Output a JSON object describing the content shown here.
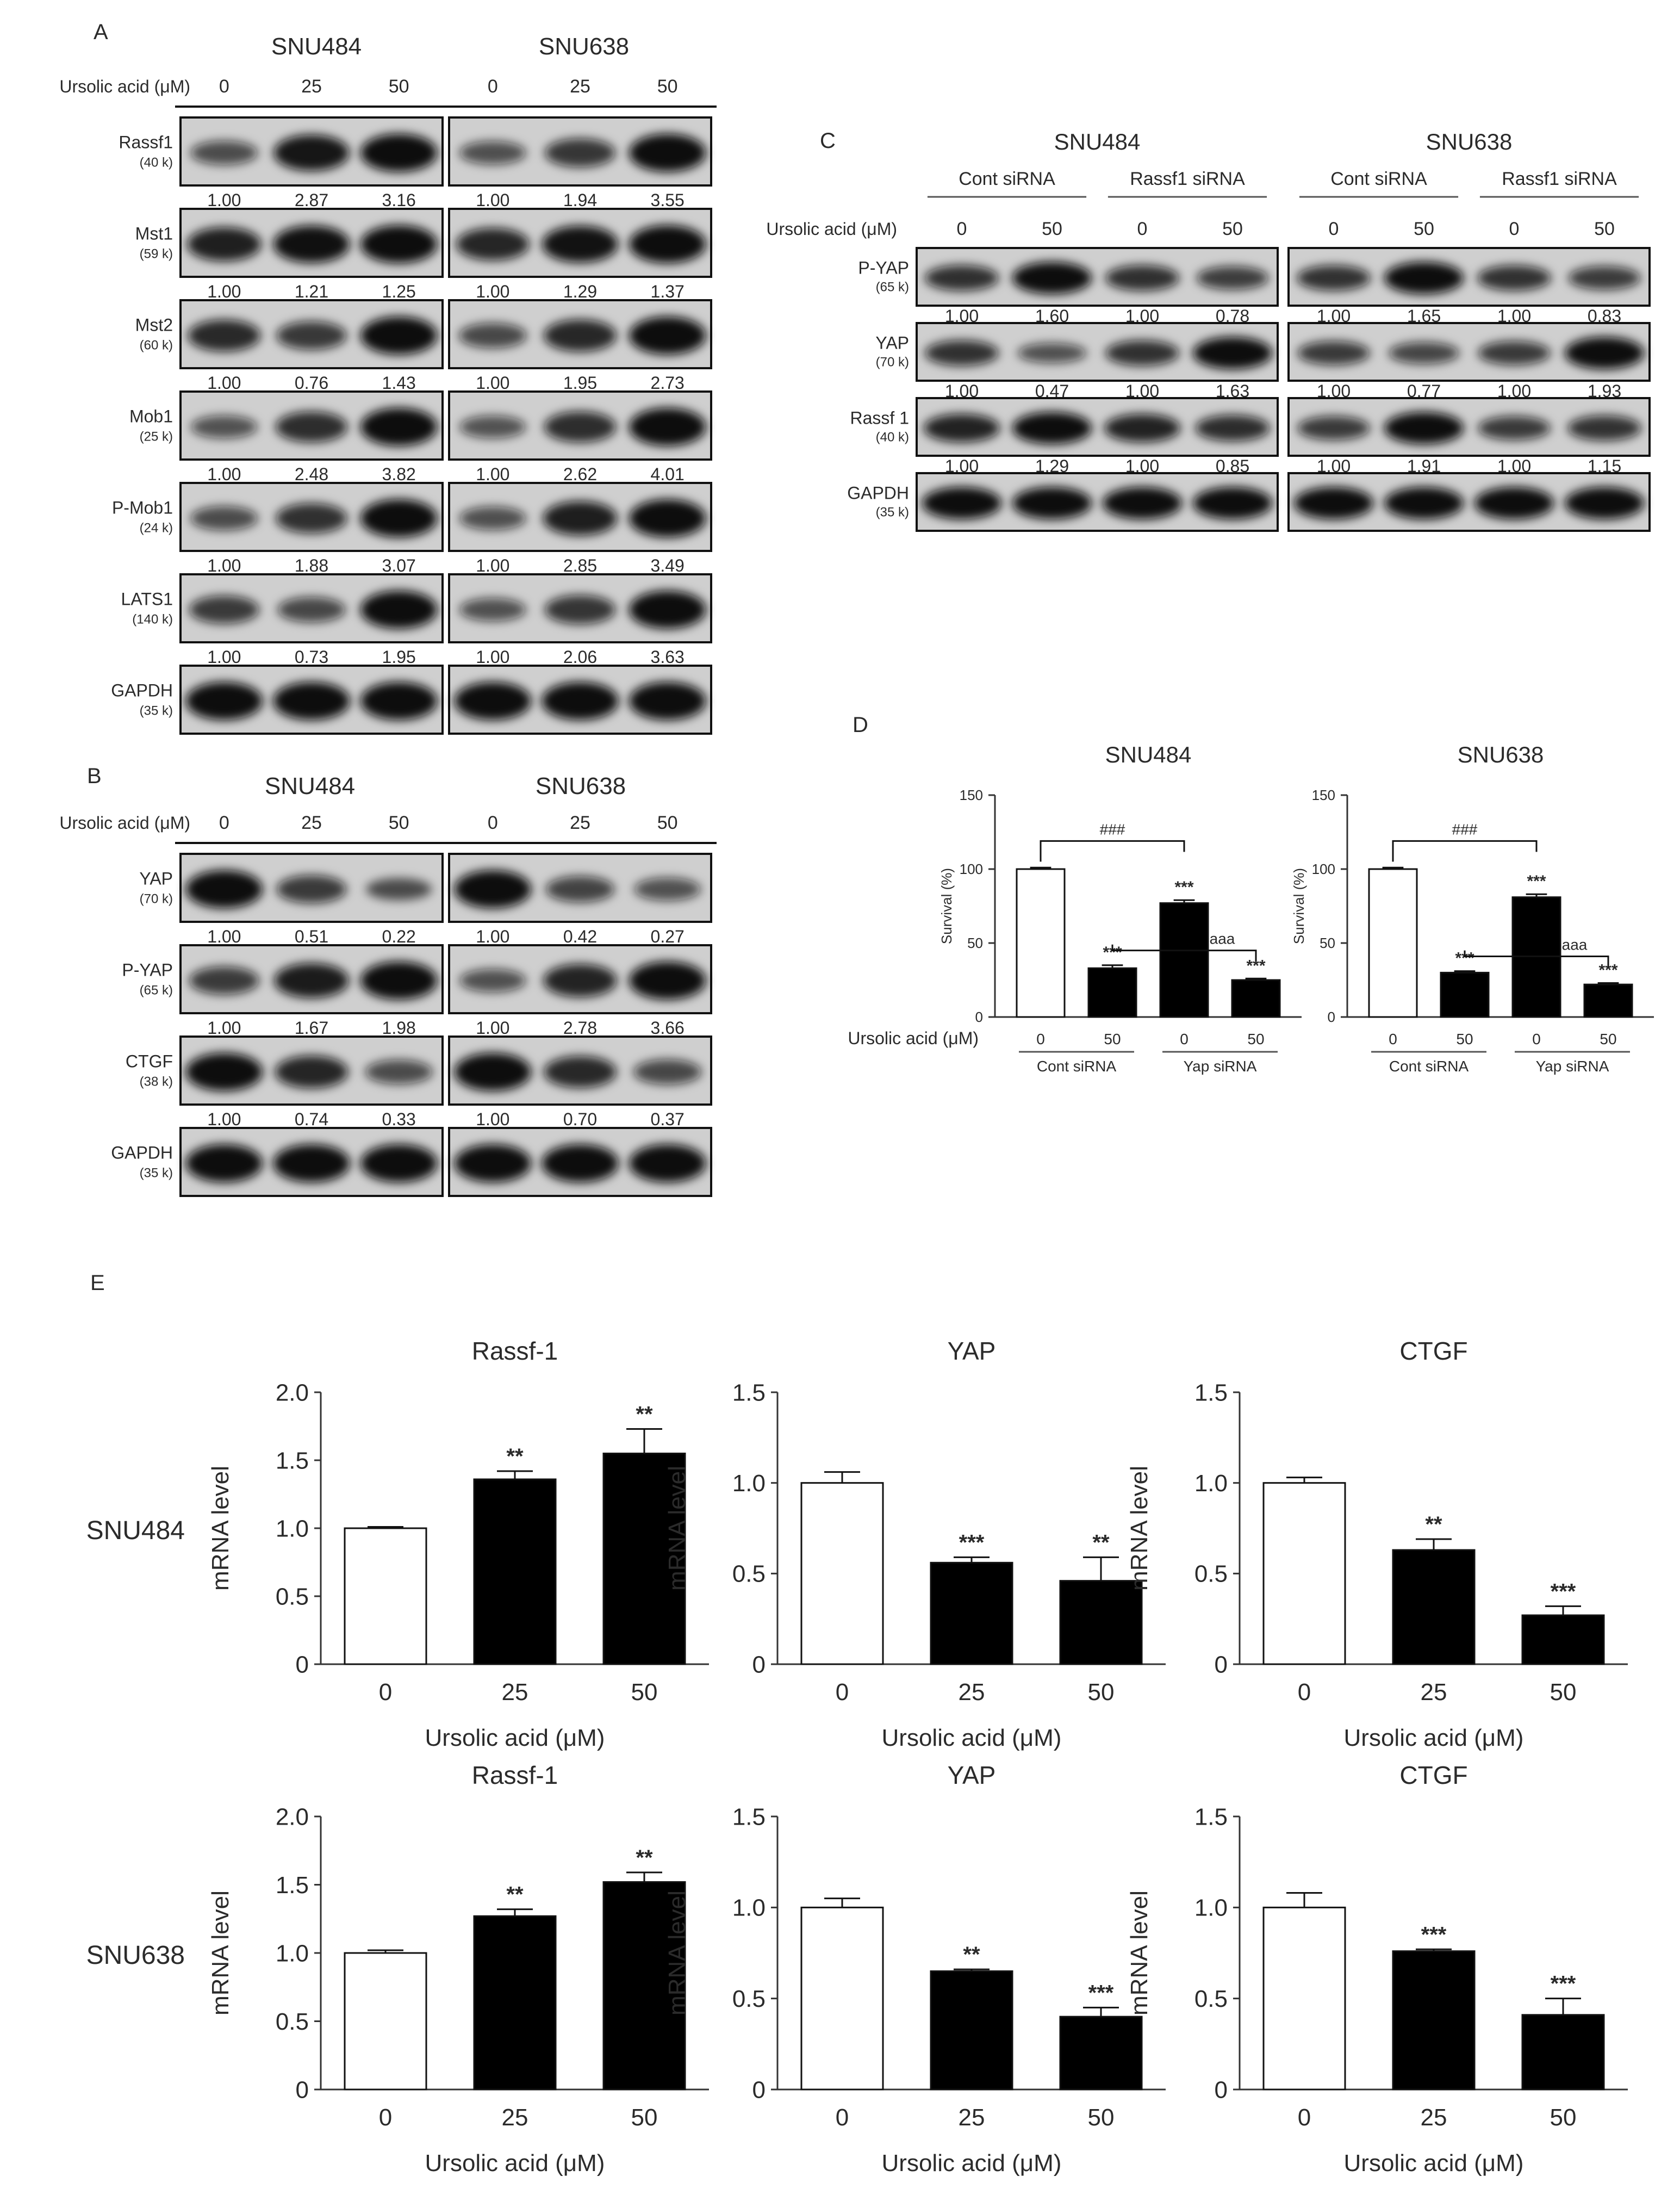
{
  "figure": {
    "panel_letters": {
      "A": "A",
      "B": "B",
      "C": "C",
      "D": "D",
      "E": "E"
    },
    "treatment_label": "Ursolic acid (μM)",
    "cell_lines": [
      "SNU484",
      "SNU638"
    ]
  },
  "panel_a": {
    "doses": [
      "0",
      "25",
      "50"
    ],
    "rows": [
      {
        "protein": "Rassf1",
        "mw": "(40 k)",
        "snu484": [
          "1.00",
          "2.87",
          "3.16"
        ],
        "snu638": [
          "1.00",
          "1.94",
          "3.55"
        ]
      },
      {
        "protein": "Mst1",
        "mw": "(59 k)",
        "snu484": [
          "1.00",
          "1.21",
          "1.25"
        ],
        "snu638": [
          "1.00",
          "1.29",
          "1.37"
        ]
      },
      {
        "protein": "Mst2",
        "mw": "(60 k)",
        "snu484": [
          "1.00",
          "0.76",
          "1.43"
        ],
        "snu638": [
          "1.00",
          "1.95",
          "2.73"
        ]
      },
      {
        "protein": "Mob1",
        "mw": "(25 k)",
        "snu484": [
          "1.00",
          "2.48",
          "3.82"
        ],
        "snu638": [
          "1.00",
          "2.62",
          "4.01"
        ]
      },
      {
        "protein": "P-Mob1",
        "mw": "(24 k)",
        "snu484": [
          "1.00",
          "1.88",
          "3.07"
        ],
        "snu638": [
          "1.00",
          "2.85",
          "3.49"
        ]
      },
      {
        "protein": "LATS1",
        "mw": "(140 k)",
        "snu484": [
          "1.00",
          "0.73",
          "1.95"
        ],
        "snu638": [
          "1.00",
          "2.06",
          "3.63"
        ]
      },
      {
        "protein": "GAPDH",
        "mw": "(35 k)",
        "snu484": [],
        "snu638": []
      }
    ]
  },
  "panel_b": {
    "doses": [
      "0",
      "25",
      "50"
    ],
    "rows": [
      {
        "protein": "YAP",
        "mw": "(70 k)",
        "snu484": [
          "1.00",
          "0.51",
          "0.22"
        ],
        "snu638": [
          "1.00",
          "0.42",
          "0.27"
        ]
      },
      {
        "protein": "P-YAP",
        "mw": "(65 k)",
        "snu484": [
          "1.00",
          "1.67",
          "1.98"
        ],
        "snu638": [
          "1.00",
          "2.78",
          "3.66"
        ]
      },
      {
        "protein": "CTGF",
        "mw": "(38 k)",
        "snu484": [
          "1.00",
          "0.74",
          "0.33"
        ],
        "snu638": [
          "1.00",
          "0.70",
          "0.37"
        ]
      },
      {
        "protein": "GAPDH",
        "mw": "(35 k)",
        "snu484": [],
        "snu638": []
      }
    ]
  },
  "panel_c": {
    "groups": [
      "Cont siRNA",
      "Rassf1 siRNA"
    ],
    "doses": [
      "0",
      "50",
      "0",
      "50"
    ],
    "rows": [
      {
        "protein": "P-YAP",
        "mw": "(65 k)",
        "snu484": [
          "1.00",
          "1.60",
          "1.00",
          "0.78"
        ],
        "snu638": [
          "1.00",
          "1.65",
          "1.00",
          "0.83"
        ]
      },
      {
        "protein": "YAP",
        "mw": "(70 k)",
        "snu484": [
          "1.00",
          "0.47",
          "1.00",
          "1.63"
        ],
        "snu638": [
          "1.00",
          "0.77",
          "1.00",
          "1.93"
        ]
      },
      {
        "protein": "Rassf 1",
        "mw": "(40 k)",
        "snu484": [
          "1.00",
          "1.29",
          "1.00",
          "0.85"
        ],
        "snu638": [
          "1.00",
          "1.91",
          "1.00",
          "1.15"
        ]
      },
      {
        "protein": "GAPDH",
        "mw": "(35 k)",
        "snu484": [],
        "snu638": []
      }
    ]
  },
  "panel_d": {
    "groups": [
      "Cont siRNA",
      "Yap siRNA"
    ]
  },
  "panel_e": {
    "xlabel": "Ursolic acid (μM)",
    "ylabel": "mRNA level"
  },
  "chart_data": [
    {
      "type": "bar",
      "panel": "D",
      "title": "SNU484",
      "ylabel": "Survival (%)",
      "xlabel": "Ursolic acid (μM)",
      "categories": [
        "0",
        "50",
        "0",
        "50"
      ],
      "groups": [
        "Cont siRNA",
        "Yap siRNA"
      ],
      "values": [
        100,
        33,
        77,
        25
      ],
      "errors": [
        1,
        2,
        2,
        1
      ],
      "bar_colors": [
        "#ffffff",
        "#000000",
        "#000000",
        "#000000"
      ],
      "stars": [
        "",
        "***",
        "***",
        "***"
      ],
      "brackets": [
        {
          "from": 0,
          "to": 2,
          "label": "###"
        },
        {
          "from": 1,
          "to": 3,
          "label": "aaa"
        }
      ],
      "ylim": [
        0,
        150
      ],
      "yticks": [
        "0",
        "50",
        "100",
        "150"
      ]
    },
    {
      "type": "bar",
      "panel": "D",
      "title": "SNU638",
      "ylabel": "Survival (%)",
      "xlabel": "",
      "categories": [
        "0",
        "50",
        "0",
        "50"
      ],
      "groups": [
        "Cont siRNA",
        "Yap siRNA"
      ],
      "values": [
        100,
        30,
        81,
        22
      ],
      "errors": [
        1,
        1,
        2,
        1
      ],
      "bar_colors": [
        "#ffffff",
        "#000000",
        "#000000",
        "#000000"
      ],
      "stars": [
        "",
        "***",
        "***",
        "***"
      ],
      "brackets": [
        {
          "from": 0,
          "to": 2,
          "label": "###"
        },
        {
          "from": 1,
          "to": 3,
          "label": "aaa"
        }
      ],
      "ylim": [
        0,
        150
      ],
      "yticks": [
        "0",
        "50",
        "100",
        "150"
      ]
    },
    {
      "type": "bar",
      "panel": "E",
      "row_label": "SNU484",
      "title": "Rassf-1",
      "ylabel": "mRNA level",
      "xlabel": "Ursolic acid (μM)",
      "categories": [
        "0",
        "25",
        "50"
      ],
      "values": [
        1.0,
        1.36,
        1.55
      ],
      "errors": [
        0.01,
        0.06,
        0.18
      ],
      "stars": [
        "",
        "**",
        "**"
      ],
      "ylim": [
        0,
        2.0
      ],
      "yticks": [
        "0",
        "0.5",
        "1.0",
        "1.5",
        "2.0"
      ]
    },
    {
      "type": "bar",
      "panel": "E",
      "row_label": "SNU484",
      "title": "YAP",
      "ylabel": "mRNA level",
      "xlabel": "Ursolic acid (μM)",
      "categories": [
        "0",
        "25",
        "50"
      ],
      "values": [
        1.0,
        0.56,
        0.46
      ],
      "errors": [
        0.06,
        0.03,
        0.13
      ],
      "stars": [
        "",
        "***",
        "**"
      ],
      "ylim": [
        0,
        1.5
      ],
      "yticks": [
        "0",
        "0.5",
        "1.0",
        "1.5"
      ]
    },
    {
      "type": "bar",
      "panel": "E",
      "row_label": "SNU484",
      "title": "CTGF",
      "ylabel": "mRNA level",
      "xlabel": "Ursolic acid (μM)",
      "categories": [
        "0",
        "25",
        "50"
      ],
      "values": [
        1.0,
        0.63,
        0.27
      ],
      "errors": [
        0.03,
        0.06,
        0.05
      ],
      "stars": [
        "",
        "**",
        "***"
      ],
      "ylim": [
        0,
        1.5
      ],
      "yticks": [
        "0",
        "0.5",
        "1.0",
        "1.5"
      ]
    },
    {
      "type": "bar",
      "panel": "E",
      "row_label": "SNU638",
      "title": "Rassf-1",
      "ylabel": "mRNA level",
      "xlabel": "Ursolic acid (μM)",
      "categories": [
        "0",
        "25",
        "50"
      ],
      "values": [
        1.0,
        1.27,
        1.52
      ],
      "errors": [
        0.02,
        0.05,
        0.07
      ],
      "stars": [
        "",
        "**",
        "**"
      ],
      "ylim": [
        0,
        2.0
      ],
      "yticks": [
        "0",
        "0.5",
        "1.0",
        "1.5",
        "2.0"
      ]
    },
    {
      "type": "bar",
      "panel": "E",
      "row_label": "SNU638",
      "title": "YAP",
      "ylabel": "mRNA level",
      "xlabel": "Ursolic acid (μM)",
      "categories": [
        "0",
        "25",
        "50"
      ],
      "values": [
        1.0,
        0.65,
        0.4
      ],
      "errors": [
        0.05,
        0.01,
        0.05
      ],
      "stars": [
        "",
        "**",
        "***"
      ],
      "ylim": [
        0,
        1.5
      ],
      "yticks": [
        "0",
        "0.5",
        "1.0",
        "1.5"
      ]
    },
    {
      "type": "bar",
      "panel": "E",
      "row_label": "SNU638",
      "title": "CTGF",
      "ylabel": "mRNA level",
      "xlabel": "Ursolic acid (μM)",
      "categories": [
        "0",
        "25",
        "50"
      ],
      "values": [
        1.0,
        0.76,
        0.41
      ],
      "errors": [
        0.08,
        0.01,
        0.09
      ],
      "stars": [
        "",
        "***",
        "***"
      ],
      "ylim": [
        0,
        1.5
      ],
      "yticks": [
        "0",
        "0.5",
        "1.0",
        "1.5"
      ]
    }
  ]
}
